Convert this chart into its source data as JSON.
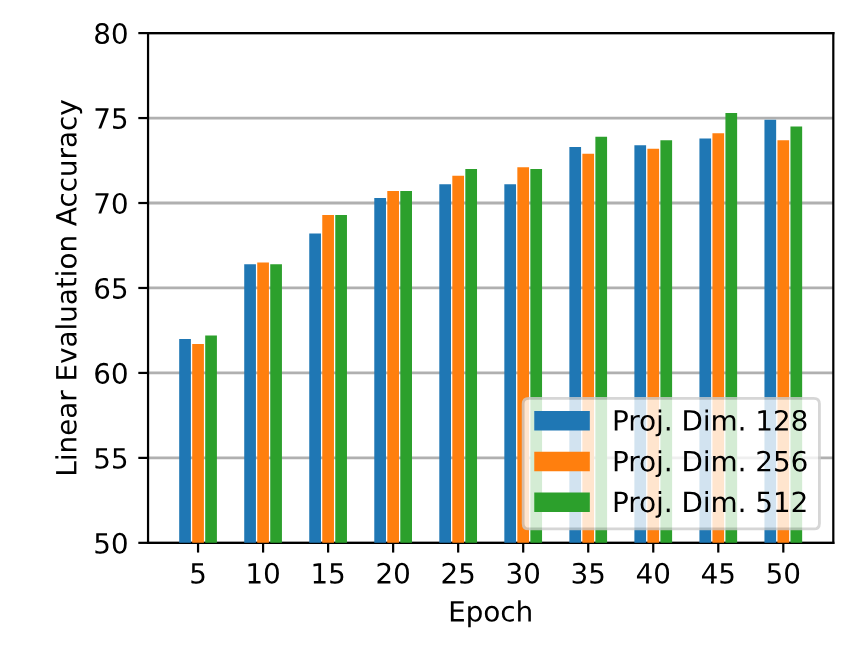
{
  "chart_data": {
    "type": "bar",
    "xlabel": "Epoch",
    "ylabel": "Linear Evaluation Accuracy",
    "categories": [
      "5",
      "10",
      "15",
      "20",
      "25",
      "30",
      "35",
      "40",
      "45",
      "50"
    ],
    "series": [
      {
        "name": "Proj. Dim. 128",
        "color": "#1f77b4",
        "values": [
          62.0,
          66.4,
          68.2,
          70.3,
          71.1,
          71.1,
          73.3,
          73.4,
          73.8,
          74.9
        ]
      },
      {
        "name": "Proj. Dim. 256",
        "color": "#ff7f0e",
        "values": [
          61.7,
          66.5,
          69.3,
          70.7,
          71.6,
          72.1,
          72.9,
          73.2,
          74.1,
          73.7
        ]
      },
      {
        "name": "Proj. Dim. 512",
        "color": "#2ca02c",
        "values": [
          62.2,
          66.4,
          69.3,
          70.7,
          72.0,
          72.0,
          73.9,
          73.7,
          75.3,
          74.5
        ]
      }
    ],
    "ylim": [
      50,
      80
    ],
    "yticks": [
      50,
      55,
      60,
      65,
      70,
      75,
      80
    ],
    "grid": "y",
    "legend": "bottom right"
  }
}
